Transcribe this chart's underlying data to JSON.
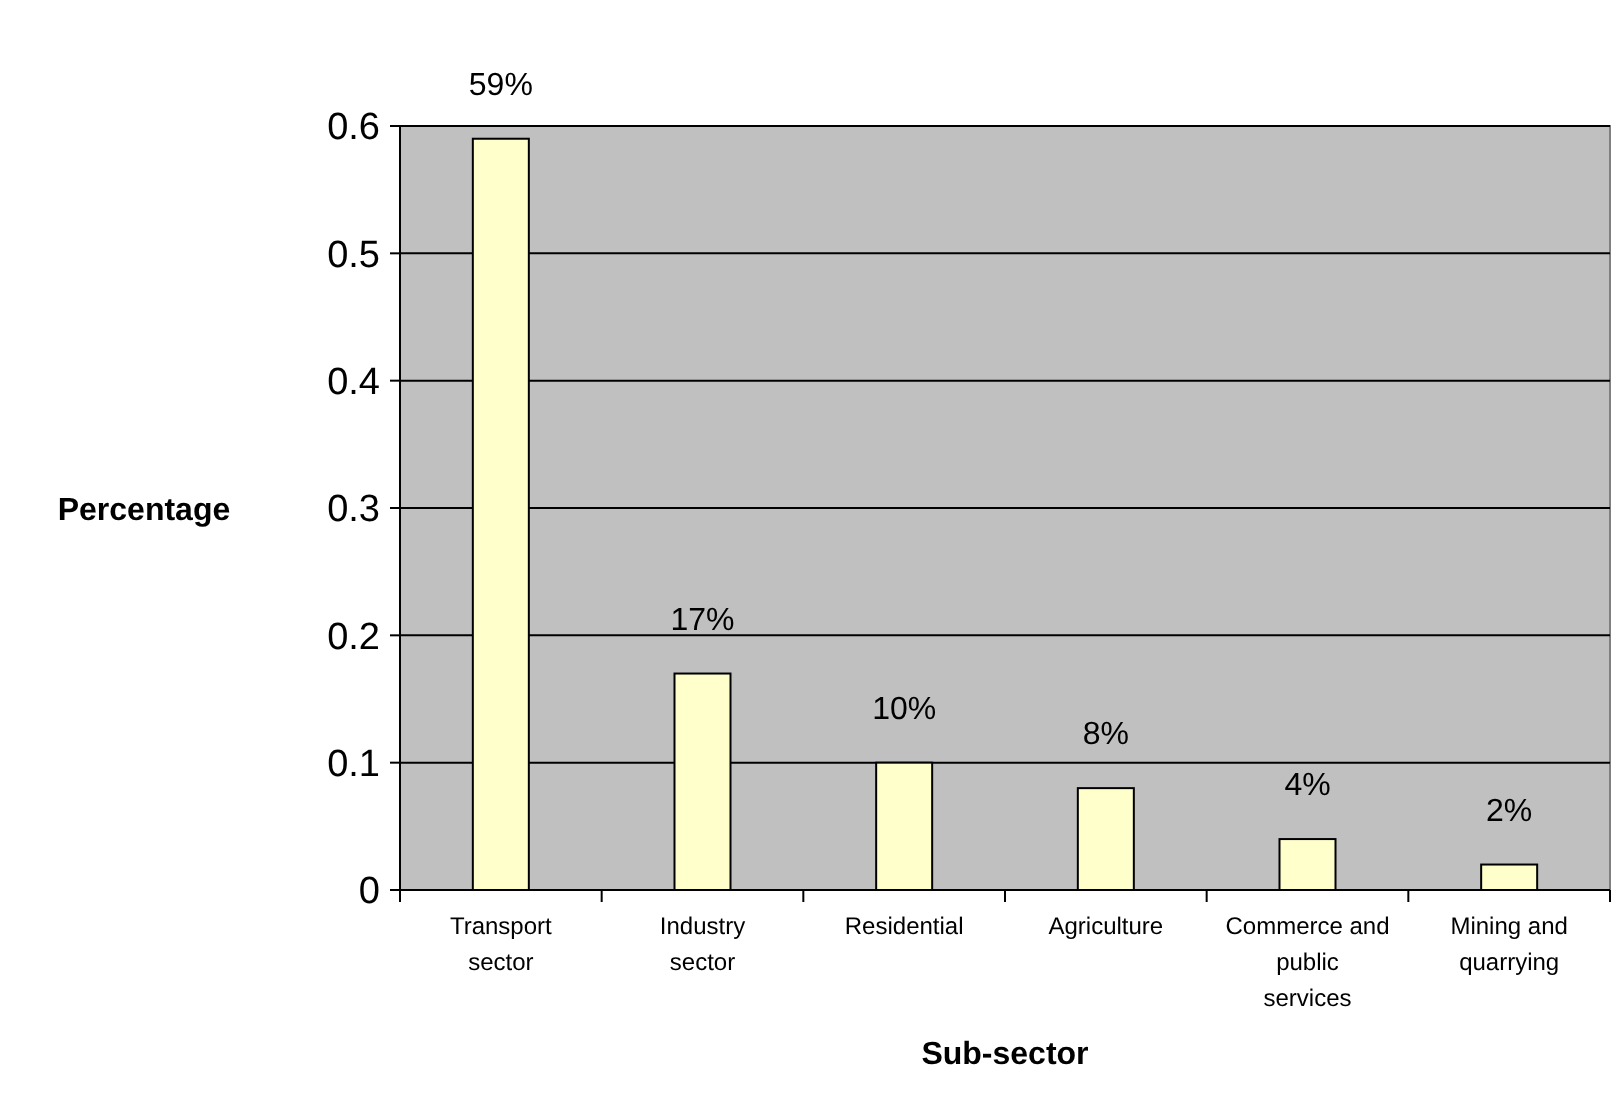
{
  "chart_data": {
    "type": "bar",
    "xlabel": "Sub-sector",
    "ylabel": "Percentage",
    "categories": [
      "Transport sector",
      "Industry sector",
      "Residential",
      "Agriculture",
      "Commerce and public services",
      "Mining and quarrying"
    ],
    "values": [
      0.59,
      0.17,
      0.1,
      0.08,
      0.04,
      0.02
    ],
    "value_labels": [
      "59%",
      "17%",
      "10%",
      "8%",
      "4%",
      "2%"
    ],
    "color": "#ffffcc",
    "ylim": [
      0,
      0.6
    ],
    "yticks": [
      0,
      0.1,
      0.2,
      0.3,
      0.4,
      0.5,
      0.6
    ],
    "grid": "y"
  }
}
